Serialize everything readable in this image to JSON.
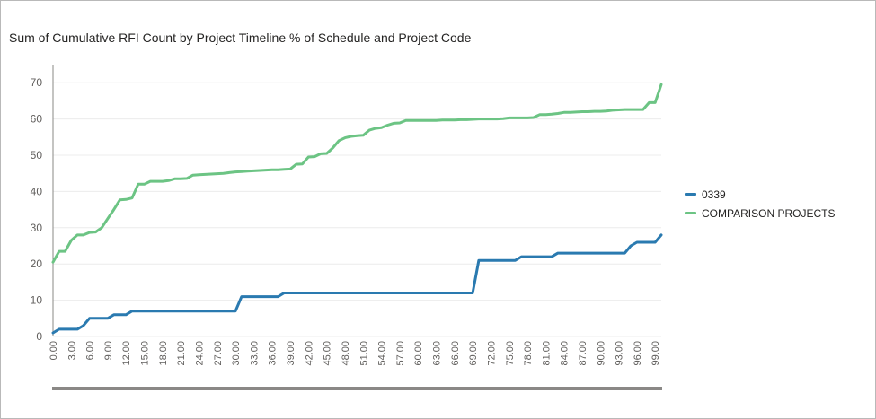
{
  "chart_data": {
    "type": "line",
    "title": "Sum of Cumulative RFI Count by Project Timeline % of Schedule and Project Code",
    "xlabel": "",
    "ylabel": "",
    "x": [
      0,
      1,
      2,
      3,
      4,
      5,
      6,
      7,
      8,
      9,
      10,
      11,
      12,
      13,
      14,
      15,
      16,
      17,
      18,
      19,
      20,
      21,
      22,
      23,
      24,
      25,
      26,
      27,
      28,
      29,
      30,
      31,
      32,
      33,
      34,
      35,
      36,
      37,
      38,
      39,
      40,
      41,
      42,
      43,
      44,
      45,
      46,
      47,
      48,
      49,
      50,
      51,
      52,
      53,
      54,
      55,
      56,
      57,
      58,
      59,
      60,
      61,
      62,
      63,
      64,
      65,
      66,
      67,
      68,
      69,
      70,
      71,
      72,
      73,
      74,
      75,
      76,
      77,
      78,
      79,
      80,
      81,
      82,
      83,
      84,
      85,
      86,
      87,
      88,
      89,
      90,
      91,
      92,
      93,
      94,
      95,
      96,
      97,
      98,
      99,
      100
    ],
    "xlim": [
      0,
      100
    ],
    "ylim": [
      0,
      75
    ],
    "x_tick_labels": [
      "0.00",
      "3.00",
      "6.00",
      "9.00",
      "12.00",
      "15.00",
      "18.00",
      "21.00",
      "24.00",
      "27.00",
      "30.00",
      "33.00",
      "36.00",
      "39.00",
      "42.00",
      "45.00",
      "48.00",
      "51.00",
      "54.00",
      "57.00",
      "60.00",
      "63.00",
      "66.00",
      "69.00",
      "72.00",
      "75.00",
      "78.00",
      "81.00",
      "84.00",
      "87.00",
      "90.00",
      "93.00",
      "96.00",
      "99.00"
    ],
    "y_ticks": [
      0,
      10,
      20,
      30,
      40,
      50,
      60,
      70
    ],
    "y_tick_labels": [
      "0",
      "10",
      "20",
      "30",
      "40",
      "50",
      "60",
      "70"
    ],
    "grid": true,
    "legend_position": "right",
    "series": [
      {
        "name": "0339",
        "color": "#2a7ab0",
        "values": [
          1,
          2,
          2,
          2,
          2,
          3,
          5,
          5,
          5,
          5,
          6,
          6,
          6,
          7,
          7,
          7,
          7,
          7,
          7,
          7,
          7,
          7,
          7,
          7,
          7,
          7,
          7,
          7,
          7,
          7,
          7,
          11,
          11,
          11,
          11,
          11,
          11,
          11,
          12,
          12,
          12,
          12,
          12,
          12,
          12,
          12,
          12,
          12,
          12,
          12,
          12,
          12,
          12,
          12,
          12,
          12,
          12,
          12,
          12,
          12,
          12,
          12,
          12,
          12,
          12,
          12,
          12,
          12,
          12,
          12,
          21,
          21,
          21,
          21,
          21,
          21,
          21,
          22,
          22,
          22,
          22,
          22,
          22,
          23,
          23,
          23,
          23,
          23,
          23,
          23,
          23,
          23,
          23,
          23,
          23,
          25,
          26,
          26,
          26,
          26,
          28
        ]
      },
      {
        "name": "COMPARISON PROJECTS",
        "color": "#6cc484",
        "values": [
          20.5,
          23.5,
          23.5,
          26.5,
          28,
          28,
          28.7,
          28.8,
          30,
          32.5,
          35,
          37.7,
          37.8,
          38.2,
          42,
          42,
          42.8,
          42.8,
          42.8,
          43,
          43.5,
          43.5,
          43.6,
          44.5,
          44.6,
          44.7,
          44.8,
          44.9,
          45.0,
          45.2,
          45.4,
          45.5,
          45.6,
          45.7,
          45.8,
          45.9,
          46,
          46,
          46.1,
          46.2,
          47.5,
          47.6,
          49.5,
          49.6,
          50.4,
          50.5,
          52,
          54,
          54.8,
          55.2,
          55.4,
          55.5,
          56.9,
          57.4,
          57.6,
          58.3,
          58.8,
          58.9,
          59.6,
          59.6,
          59.6,
          59.6,
          59.6,
          59.6,
          59.7,
          59.7,
          59.7,
          59.8,
          59.8,
          59.9,
          60,
          60,
          60,
          60,
          60.1,
          60.3,
          60.3,
          60.3,
          60.3,
          60.4,
          61.2,
          61.2,
          61.3,
          61.5,
          61.8,
          61.8,
          61.9,
          62,
          62,
          62.1,
          62.1,
          62.2,
          62.4,
          62.5,
          62.6,
          62.6,
          62.6,
          62.6,
          64.5,
          64.5,
          69.5
        ]
      }
    ]
  }
}
